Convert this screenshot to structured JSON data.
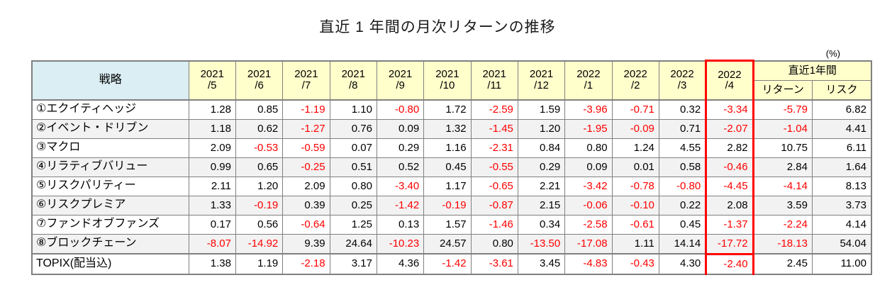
{
  "page": {
    "title": "直近 1 年間の月次リターンの推移",
    "unit_label": "(%)"
  },
  "table": {
    "strategy_header": "戦略",
    "recent_period_header": "直近1年間",
    "return_header": "リターン",
    "risk_header": "リスク",
    "months": [
      "2021/5",
      "2021/6",
      "2021/7",
      "2021/8",
      "2021/9",
      "2021/10",
      "2021/11",
      "2021/12",
      "2022/1",
      "2022/2",
      "2022/3",
      "2022/4"
    ],
    "highlight_month": "2022/4",
    "rows": [
      {
        "name": "①エクイティヘッジ",
        "values": [
          "1.28",
          "0.85",
          "-1.19",
          "1.10",
          "-0.80",
          "1.72",
          "-2.59",
          "1.59",
          "-3.96",
          "-0.71",
          "0.32",
          "-3.34"
        ],
        "return": "-5.79",
        "risk": "6.82"
      },
      {
        "name": "②イベント・ドリブン",
        "values": [
          "1.18",
          "0.62",
          "-1.27",
          "0.76",
          "0.09",
          "1.32",
          "-1.45",
          "1.20",
          "-1.95",
          "-0.09",
          "0.71",
          "-2.07"
        ],
        "return": "-1.04",
        "risk": "4.41"
      },
      {
        "name": "③マクロ",
        "values": [
          "2.09",
          "-0.53",
          "-0.59",
          "0.07",
          "0.29",
          "1.16",
          "-2.31",
          "0.84",
          "0.80",
          "1.24",
          "4.55",
          "2.82"
        ],
        "return": "10.75",
        "risk": "6.11"
      },
      {
        "name": "④リラティブバリュー",
        "values": [
          "0.99",
          "0.65",
          "-0.25",
          "0.51",
          "0.52",
          "0.45",
          "-0.55",
          "0.29",
          "0.09",
          "0.01",
          "0.58",
          "-0.46"
        ],
        "return": "2.84",
        "risk": "1.64"
      },
      {
        "name": "⑤リスクパリティー",
        "values": [
          "2.11",
          "1.20",
          "2.09",
          "0.80",
          "-3.40",
          "1.17",
          "-0.65",
          "2.21",
          "-3.42",
          "-0.78",
          "-0.80",
          "-4.45"
        ],
        "return": "-4.14",
        "risk": "8.13"
      },
      {
        "name": "⑥リスクプレミア",
        "values": [
          "1.33",
          "-0.19",
          "0.39",
          "0.25",
          "-1.42",
          "-0.19",
          "-0.87",
          "2.15",
          "-0.06",
          "-0.10",
          "0.22",
          "2.08"
        ],
        "return": "3.59",
        "risk": "3.73"
      },
      {
        "name": "⑦ファンドオブファンズ",
        "values": [
          "0.17",
          "0.56",
          "-0.64",
          "1.25",
          "0.13",
          "1.57",
          "-1.46",
          "0.34",
          "-2.58",
          "-0.61",
          "0.45",
          "-1.37"
        ],
        "return": "-2.24",
        "risk": "4.14"
      },
      {
        "name": "⑧ブロックチェーン",
        "values": [
          "-8.07",
          "-14.92",
          "9.39",
          "24.64",
          "-10.23",
          "24.57",
          "0.80",
          "-13.50",
          "-17.08",
          "1.11",
          "14.14",
          "-17.72"
        ],
        "return": "-18.13",
        "risk": "54.04"
      },
      {
        "name": "TOPIX(配当込)",
        "values": [
          "1.38",
          "1.19",
          "-2.18",
          "3.17",
          "4.36",
          "-1.42",
          "-3.61",
          "3.45",
          "-4.83",
          "-0.43",
          "4.30",
          "-2.40"
        ],
        "return": "2.45",
        "risk": "11.00",
        "separator": true
      }
    ],
    "colors": {
      "negative_text": "#FF0000",
      "highlight_border": "#FF0000",
      "month_header_bg": "#FFFFCC",
      "strategy_header_bg": "#DAEEF3",
      "stripe_bg": "#F2F2F2",
      "grid": "#808080"
    }
  }
}
